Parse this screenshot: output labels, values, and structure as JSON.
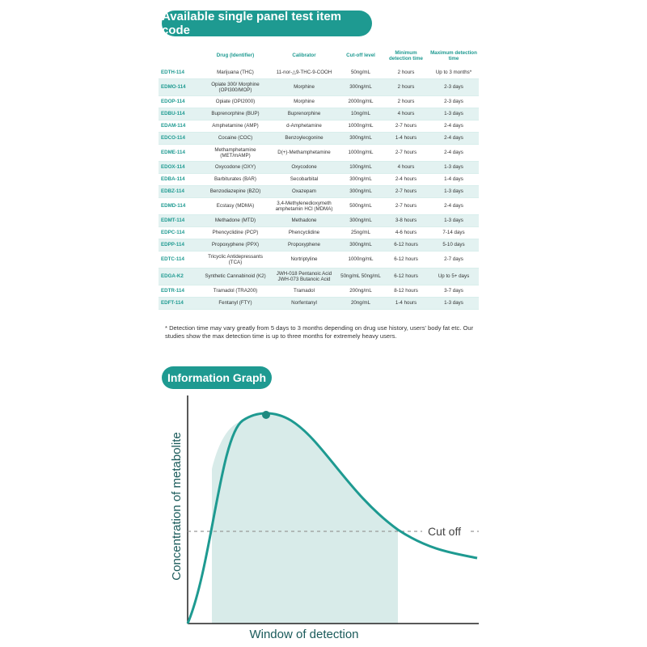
{
  "title": "Available single panel test item code",
  "table": {
    "headers": [
      "",
      "Drug (Identifier)",
      "Calibrator",
      "Cut-off level",
      "Minimum detection time",
      "Maximum detection time"
    ],
    "rows": [
      [
        "EDTH-114",
        "Marijuana (THC)",
        "11-nor-△9-THC-9-COOH",
        "50ng/mL",
        "2 hours",
        "Up to 3 months*"
      ],
      [
        "EDMO-114",
        "Opiate 300/ Morphine (OPI300/MOP)",
        "Morphine",
        "300ng/mL",
        "2 hours",
        "2-3 days"
      ],
      [
        "EDOP-114",
        "Opiate (OPI2000)",
        "Morphine",
        "2000ng/mL",
        "2 hours",
        "2-3 days"
      ],
      [
        "EDBU-114",
        "Buprenorphine (BUP)",
        "Buprenorphine",
        "10ng/mL",
        "4 hours",
        "1-3 days"
      ],
      [
        "EDAM-114",
        "Amphetamine (AMP)",
        "d-Amphetamine",
        "1000ng/mL",
        "2-7 hours",
        "2-4 days"
      ],
      [
        "EDCO-114",
        "Cocaine (COC)",
        "Benzoylecgonine",
        "300ng/mL",
        "1-4 hours",
        "2-4 days"
      ],
      [
        "EDME-114",
        "Methamphetamine (MET/mAMP)",
        "D(+)-Methamphetamine",
        "1000ng/mL",
        "2-7 hours",
        "2-4 days"
      ],
      [
        "EDOX-114",
        "Oxycodone (OXY)",
        "Oxycodone",
        "100ng/mL",
        "4 hours",
        "1-3 days"
      ],
      [
        "EDBA-114",
        "Barbiturates (BAR)",
        "Secobarbital",
        "300ng/mL",
        "2-4 hours",
        "1-4 days"
      ],
      [
        "EDBZ-114",
        "Benzodiazepine (BZO)",
        "Oxazepam",
        "300ng/mL",
        "2-7 hours",
        "1-3 days"
      ],
      [
        "EDMD-114",
        "Ecstasy (MDMA)",
        "3,4-Methylenedioxymeth amphetamin HCl (MDMA)",
        "500ng/mL",
        "2-7 hours",
        "2-4 days"
      ],
      [
        "EDMT-114",
        "Methadone (MTD)",
        "Methadone",
        "300ng/mL",
        "3-8 hours",
        "1-3 days"
      ],
      [
        "EDPC-114",
        "Phencyclidine (PCP)",
        "Phencyclidine",
        "25ng/mL",
        "4-6 hours",
        "7-14 days"
      ],
      [
        "EDPP-114",
        "Propoxyphene (PPX)",
        "Propoxyphene",
        "300ng/mL",
        "6-12 hours",
        "5-10 days"
      ],
      [
        "EDTC-114",
        "Tricyclic Antidepressants (TCA)",
        "Nortriptyline",
        "1000ng/mL",
        "6-12 hours",
        "2-7 days"
      ],
      [
        "EDGA-K2",
        "Synthetic Cannabinoid (K2)",
        "JWH-018 Pentanoic Acid JWH-073 Butanoic Acid",
        "50ng/mL 50ng/mL",
        "6-12 hours",
        "Up to 5+ days"
      ],
      [
        "EDTR-114",
        "Tramadol (TRA200)",
        "Tramadol",
        "200ng/mL",
        "8-12 hours",
        "3-7 days"
      ],
      [
        "EDFT-114",
        "Fentanyl (FTY)",
        "Norfentanyl",
        "20ng/mL",
        "1-4 hours",
        "1-3 days"
      ]
    ]
  },
  "footnote": "* Detection time may vary greatly from 5 days to 3 months depending on drug use history, users' body fat etc. Our studies show the max detection time is up to three months for extremely heavy users.",
  "graph": {
    "heading": "Information Graph",
    "y_axis_label": "Concentration of metabolite",
    "x_axis_label": "Window of detection",
    "cutoff_label": "Cut off"
  },
  "colors": {
    "accent": "#1e9a91",
    "row_alt": "#e3f2f1",
    "shade": "#d8ebe9",
    "axis_text": "#1a5a5a"
  }
}
